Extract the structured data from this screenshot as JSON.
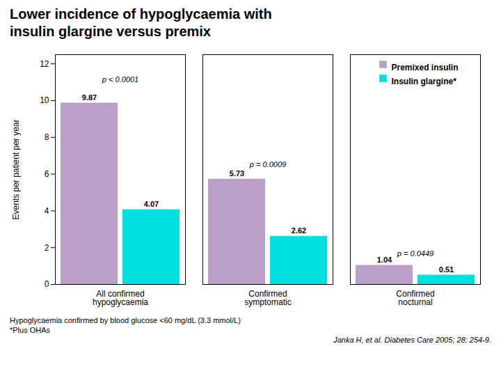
{
  "chart_data": {
    "type": "bar",
    "title": "Lower incidence of hypoglycaemia with\ninsulin glargine versus premix",
    "ylabel": "Events per patient per year",
    "categories": [
      "All confirmed\nhypoglycaemia",
      "Confirmed\nsymptomatic",
      "Confirmed\nnocturnal"
    ],
    "series": [
      {
        "name": "Premixed insulin",
        "color": "#b8a0c8",
        "values": [
          9.87,
          5.73,
          1.04
        ]
      },
      {
        "name": "Insulin glargine*",
        "color": "#00e0e0",
        "values": [
          4.07,
          2.62,
          0.51
        ]
      }
    ],
    "ylim": [
      0,
      12.5
    ],
    "yticks": [
      0,
      2,
      4,
      6,
      8,
      10,
      12
    ],
    "grid": false,
    "data_labels": true,
    "legend": "upper right",
    "annotations": [
      {
        "text": "p < 0.0001",
        "category": "All confirmed\nhypoglycaemia",
        "y": 11.0
      },
      {
        "text": "p = 0.0009",
        "category": "Confirmed\nsymptomatic",
        "y": 6.4
      },
      {
        "text": "p = 0.0449",
        "category": "Confirmed\nnocturnal",
        "y": 1.55
      }
    ],
    "footnotes": [
      "Hypoglycaemia confirmed by blood glucose <60 mg/dL (3.3 mmol/L)",
      "*Plus OHAs"
    ],
    "source": "Janka H, et al. Diabetes Care 2005; 28: 254-9."
  }
}
